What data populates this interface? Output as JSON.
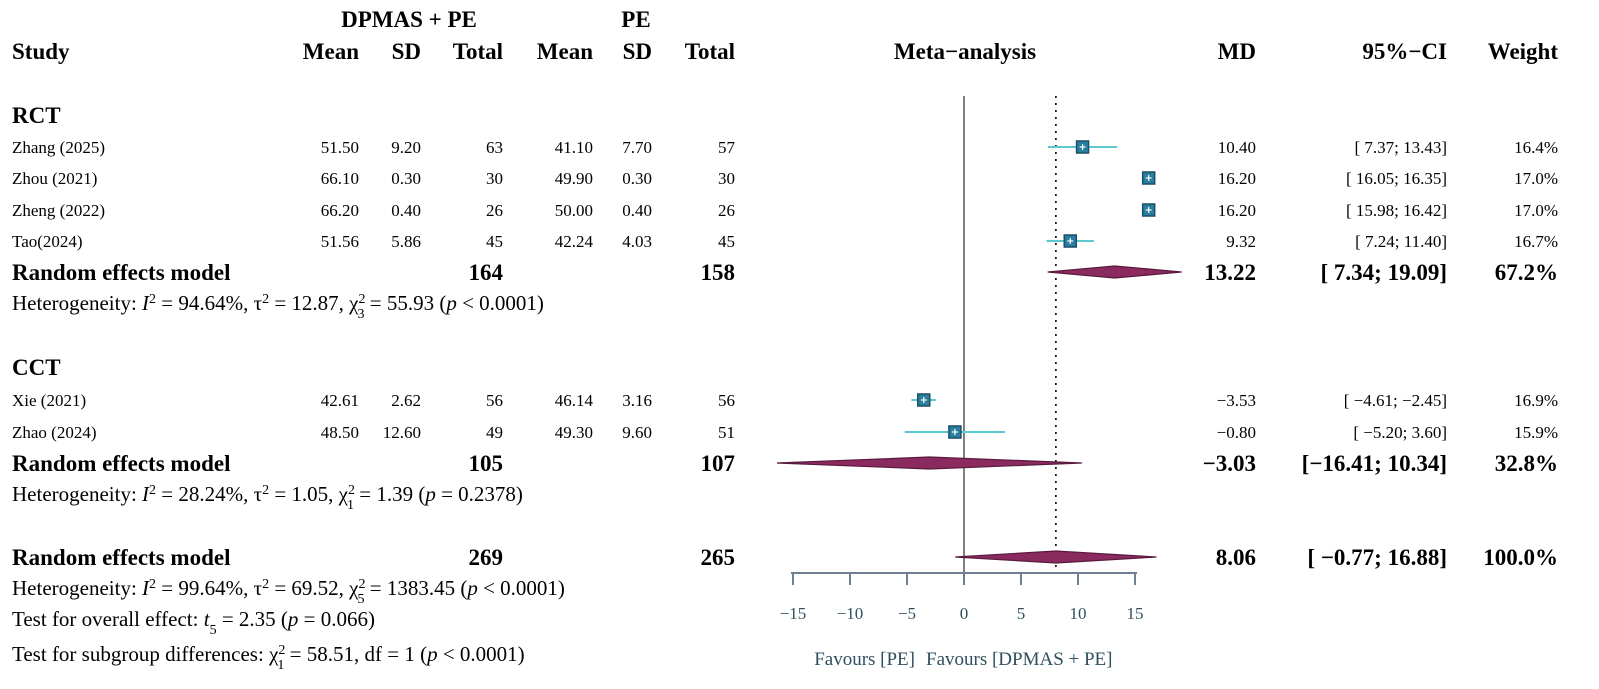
{
  "chart_data": {
    "type": "forest",
    "title": "Meta−analysis",
    "group_header_exp": "DPMAS + PE",
    "group_header_ctl": "PE",
    "columns": {
      "study": "Study",
      "mean_e": "Mean",
      "sd_e": "SD",
      "total_e": "Total",
      "mean_c": "Mean",
      "sd_c": "SD",
      "total_c": "Total",
      "md": "MD",
      "ci": "95%−CI",
      "weight": "Weight"
    },
    "subgroups": [
      {
        "name": "RCT",
        "studies": [
          {
            "study": "Zhang (2025)",
            "mean_e": "51.50",
            "sd_e": "9.20",
            "total_e": "63",
            "mean_c": "41.10",
            "sd_c": "7.70",
            "total_c": "57",
            "md": 10.4,
            "lower": 7.37,
            "upper": 13.43,
            "md_text": "10.40",
            "ci_text": "[  7.37; 13.43]",
            "weight": "16.4%"
          },
          {
            "study": "Zhou (2021)",
            "mean_e": "66.10",
            "sd_e": "0.30",
            "total_e": "30",
            "mean_c": "49.90",
            "sd_c": "0.30",
            "total_c": "30",
            "md": 16.2,
            "lower": 16.05,
            "upper": 16.35,
            "md_text": "16.20",
            "ci_text": "[ 16.05; 16.35]",
            "weight": "17.0%"
          },
          {
            "study": "Zheng (2022)",
            "mean_e": "66.20",
            "sd_e": "0.40",
            "total_e": "26",
            "mean_c": "50.00",
            "sd_c": "0.40",
            "total_c": "26",
            "md": 16.2,
            "lower": 15.98,
            "upper": 16.42,
            "md_text": "16.20",
            "ci_text": "[ 15.98; 16.42]",
            "weight": "17.0%"
          },
          {
            "study": "Tao(2024)",
            "mean_e": "51.56",
            "sd_e": "5.86",
            "total_e": "45",
            "mean_c": "42.24",
            "sd_c": "4.03",
            "total_c": "45",
            "md": 9.32,
            "lower": 7.24,
            "upper": 11.4,
            "md_text": "9.32",
            "ci_text": "[  7.24; 11.40]",
            "weight": "16.7%"
          }
        ],
        "summary": {
          "label": "Random effects model",
          "total_e": "164",
          "total_c": "158",
          "md": 13.22,
          "lower": 7.34,
          "upper": 19.09,
          "md_text": "13.22",
          "ci_text": "[  7.34; 19.09]",
          "weight": "67.2%"
        },
        "heterogeneity": {
          "prefix": "Heterogeneity: ",
          "i2": "I",
          "i2_exp": "2",
          "i2_val": " = 94.64%, ",
          "tau2": "τ",
          "tau2_exp": "2",
          "tau2_val": " = 12.87, ",
          "chi": "χ",
          "chi_exp": "2",
          "chi_sub": "3",
          "chi_val": " = 55.93 (",
          "p": "p",
          "p_val": " < 0.0001)"
        }
      },
      {
        "name": "CCT",
        "studies": [
          {
            "study": "Xie (2021)",
            "mean_e": "42.61",
            "sd_e": "2.62",
            "total_e": "56",
            "mean_c": "46.14",
            "sd_c": "3.16",
            "total_c": "56",
            "md": -3.53,
            "lower": -4.61,
            "upper": -2.45,
            "md_text": "−3.53",
            "ci_text": "[ −4.61; −2.45]",
            "weight": "16.9%"
          },
          {
            "study": "Zhao (2024)",
            "mean_e": "48.50",
            "sd_e": "12.60",
            "total_e": "49",
            "mean_c": "49.30",
            "sd_c": "9.60",
            "total_c": "51",
            "md": -0.8,
            "lower": -5.2,
            "upper": 3.6,
            "md_text": "−0.80",
            "ci_text": "[ −5.20;  3.60]",
            "weight": "15.9%"
          }
        ],
        "summary": {
          "label": "Random effects model",
          "total_e": "105",
          "total_c": "107",
          "md": -3.03,
          "lower": -16.41,
          "upper": 10.34,
          "md_text": "−3.03",
          "ci_text": "[−16.41; 10.34]",
          "weight": "32.8%"
        },
        "heterogeneity": {
          "prefix": "Heterogeneity: ",
          "i2": "I",
          "i2_exp": "2",
          "i2_val": " = 28.24%, ",
          "tau2": "τ",
          "tau2_exp": "2",
          "tau2_val": " = 1.05, ",
          "chi": "χ",
          "chi_exp": "2",
          "chi_sub": "1",
          "chi_val": " = 1.39 (",
          "p": "p",
          "p_val": " = 0.2378)"
        }
      }
    ],
    "overall": {
      "label": "Random effects model",
      "total_e": "269",
      "total_c": "265",
      "md": 8.06,
      "lower": -0.77,
      "upper": 16.88,
      "md_text": "8.06",
      "ci_text": "[ −0.77; 16.88]",
      "weight": "100.0%",
      "heterogeneity": {
        "prefix": "Heterogeneity: ",
        "i2": "I",
        "i2_exp": "2",
        "i2_val": " = 99.64%, ",
        "tau2": "τ",
        "tau2_exp": "2",
        "tau2_val": " = 69.52, ",
        "chi": "χ",
        "chi_exp": "2",
        "chi_sub": "5",
        "chi_val": " = 1383.45 (",
        "p": "p",
        "p_val": " < 0.0001)"
      },
      "test_overall": {
        "prefix": "Test for overall effect: ",
        "t": "t",
        "t_sub": "5",
        "t_val": " = 2.35 (",
        "p": "p",
        "p_val": " = 0.066)"
      },
      "test_subgroup": {
        "prefix": "Test for subgroup differences: ",
        "chi": "χ",
        "chi_exp": "2",
        "chi_sub": "1",
        "chi_val": " = 58.51, df = 1 (",
        "p": "p",
        "p_val": " < 0.0001)"
      }
    },
    "axis": {
      "xlim": [
        -15,
        15
      ],
      "ticks": [
        -15,
        -10,
        -5,
        0,
        5,
        10,
        15
      ],
      "tick_labels": [
        "−15",
        "−10",
        "−5",
        "0",
        "5",
        "10",
        "15"
      ],
      "null_line": 0,
      "reference_line": 8.06,
      "label_left": "Favours [PE]",
      "label_right": "Favours [DPMAS + PE]"
    },
    "colors": {
      "square": "#2a7fa0",
      "square_border": "#1a4f66",
      "ci_line": "#5ec8d0",
      "diamond": "#8b2a5e",
      "diamond_border": "#5a1a3e",
      "null_line": "#808080",
      "axis": "#708090"
    }
  }
}
